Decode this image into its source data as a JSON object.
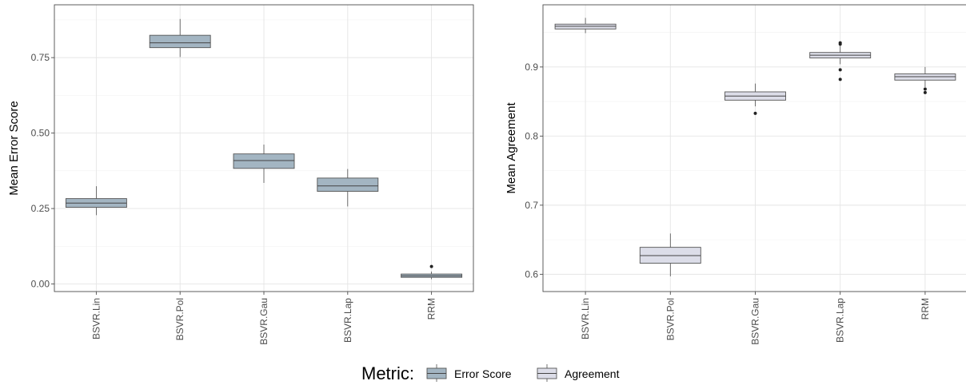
{
  "chart_data": [
    {
      "type": "boxplot",
      "metric": "Error Score",
      "xlabel": "",
      "ylabel": "Mean Error Score",
      "ylim": [
        -0.025,
        0.925
      ],
      "yticks": [
        0.0,
        0.25,
        0.5,
        0.75
      ],
      "ytick_labels": [
        "0.00",
        "0.25",
        "0.50",
        "0.75"
      ],
      "grid": true,
      "categories": [
        "BSVR.Lin",
        "BSVR.Pol",
        "BSVR.Gau",
        "BSVR.Lap",
        "RRM"
      ],
      "boxes": [
        {
          "whisker_low": 0.228,
          "q1": 0.254,
          "median": 0.268,
          "q3": 0.283,
          "whisker_high": 0.324,
          "outliers": []
        },
        {
          "whisker_low": 0.752,
          "q1": 0.783,
          "median": 0.799,
          "q3": 0.824,
          "whisker_high": 0.878,
          "outliers": []
        },
        {
          "whisker_low": 0.335,
          "q1": 0.383,
          "median": 0.409,
          "q3": 0.431,
          "whisker_high": 0.462,
          "outliers": []
        },
        {
          "whisker_low": 0.257,
          "q1": 0.307,
          "median": 0.325,
          "q3": 0.351,
          "whisker_high": 0.381,
          "outliers": []
        },
        {
          "whisker_low": 0.016,
          "q1": 0.022,
          "median": 0.027,
          "q3": 0.033,
          "whisker_high": 0.041,
          "outliers": [
            0.058
          ]
        }
      ],
      "fill": "#a3b5c2"
    },
    {
      "type": "boxplot",
      "metric": "Agreement",
      "xlabel": "",
      "ylabel": "Mean Agreement",
      "ylim": [
        0.575,
        0.99
      ],
      "yticks": [
        0.6,
        0.7,
        0.8,
        0.9
      ],
      "ytick_labels": [
        "0.6",
        "0.7",
        "0.8",
        "0.9"
      ],
      "grid": true,
      "categories": [
        "BSVR.Lin",
        "BSVR.Pol",
        "BSVR.Gau",
        "BSVR.Lap",
        "RRM"
      ],
      "boxes": [
        {
          "whisker_low": 0.949,
          "q1": 0.955,
          "median": 0.959,
          "q3": 0.962,
          "whisker_high": 0.971,
          "outliers": []
        },
        {
          "whisker_low": 0.597,
          "q1": 0.616,
          "median": 0.627,
          "q3": 0.639,
          "whisker_high": 0.659,
          "outliers": []
        },
        {
          "whisker_low": 0.843,
          "q1": 0.852,
          "median": 0.858,
          "q3": 0.864,
          "whisker_high": 0.876,
          "outliers": [
            0.833
          ]
        },
        {
          "whisker_low": 0.904,
          "q1": 0.913,
          "median": 0.917,
          "q3": 0.921,
          "whisker_high": 0.931,
          "outliers": [
            0.882,
            0.896,
            0.933,
            0.935
          ]
        },
        {
          "whisker_low": 0.871,
          "q1": 0.881,
          "median": 0.886,
          "q3": 0.89,
          "whisker_high": 0.9,
          "outliers": [
            0.863,
            0.868
          ]
        }
      ],
      "fill": "#dcdde8"
    }
  ],
  "legend": {
    "title": "Metric:",
    "position": "bottom",
    "entries": [
      {
        "label": "Error Score",
        "color": "#a3b5c2"
      },
      {
        "label": "Agreement",
        "color": "#dcdde8"
      }
    ]
  }
}
